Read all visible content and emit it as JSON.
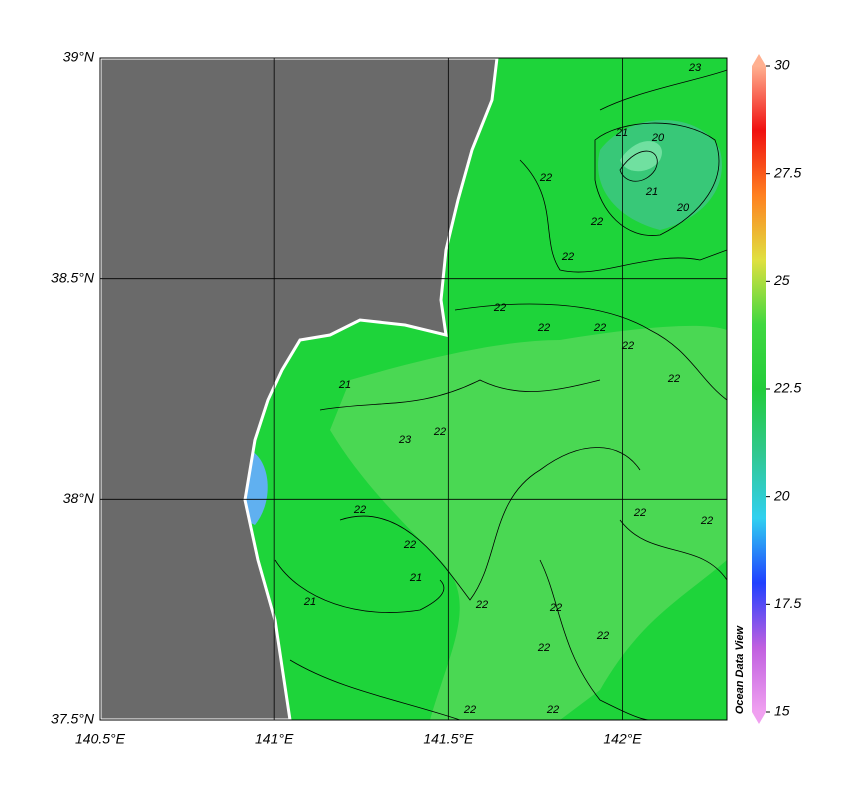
{
  "map": {
    "xlim": [
      140.5,
      142.3
    ],
    "ylim": [
      37.5,
      39
    ],
    "xticks": [
      {
        "value": 140.5,
        "label": "140.5°E"
      },
      {
        "value": 141,
        "label": "141°E"
      },
      {
        "value": 141.5,
        "label": "141.5°E"
      },
      {
        "value": 142,
        "label": "142°E"
      }
    ],
    "yticks": [
      {
        "value": 37.5,
        "label": "37.5°N"
      },
      {
        "value": 38,
        "label": "38°N"
      },
      {
        "value": 38.5,
        "label": "38.5°N"
      },
      {
        "value": 39,
        "label": "39°N"
      }
    ],
    "grid": true,
    "colorbar": {
      "lim": [
        15,
        30
      ],
      "ticks": [
        15,
        17.5,
        20,
        22.5,
        25,
        27.5,
        30
      ],
      "colors": [
        "#f0a0f0",
        "#c060e0",
        "#2040ff",
        "#30d0f0",
        "#30c890",
        "#22cc3a",
        "#40d840",
        "#e0e040",
        "#ff8020",
        "#f01010",
        "#ffb090"
      ]
    },
    "watermark": "Ocean Data View",
    "contour_labels": [
      "23",
      "21",
      "20",
      "21",
      "20",
      "22",
      "22",
      "22",
      "22",
      "22",
      "22",
      "22",
      "22",
      "22",
      "21",
      "23",
      "22",
      "22",
      "21",
      "22",
      "21",
      "22",
      "22",
      "22",
      "22",
      "22",
      "22",
      "22"
    ]
  }
}
